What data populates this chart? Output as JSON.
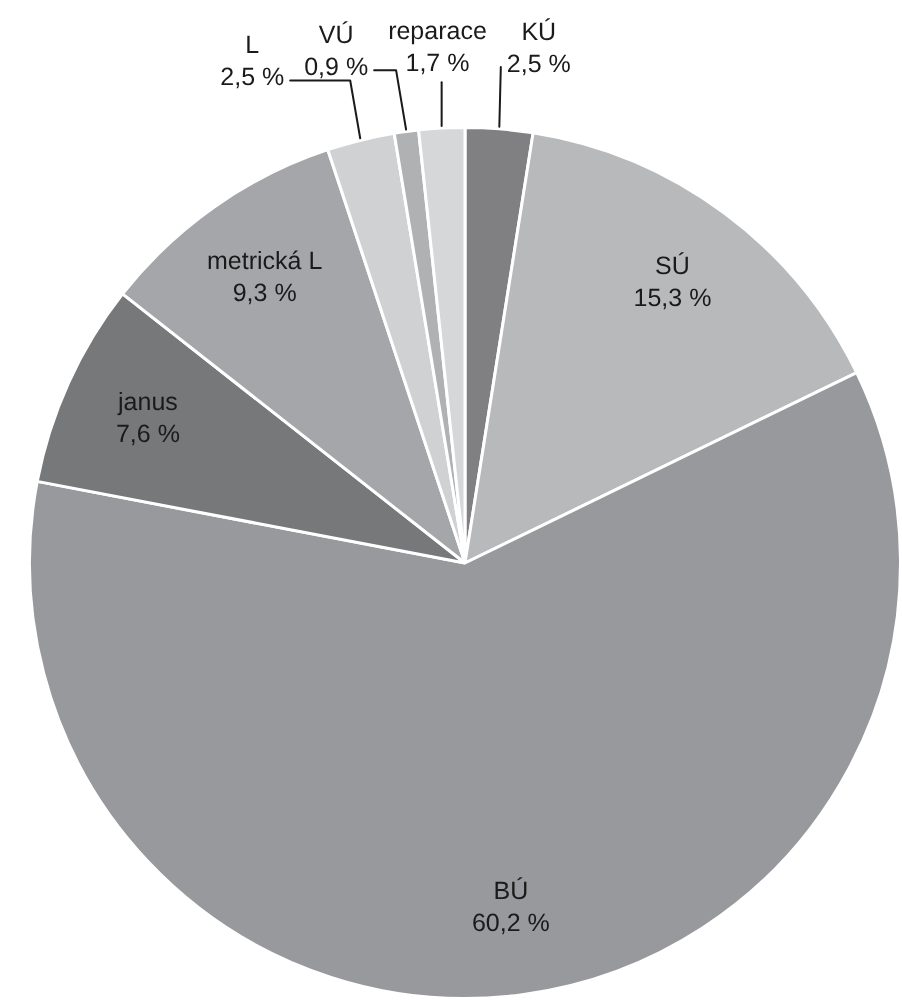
{
  "chart_data": {
    "type": "pie",
    "categories": [
      "KÚ",
      "SÚ",
      "BÚ",
      "janus",
      "metrická L",
      "L",
      "VÚ",
      "reparace"
    ],
    "values": [
      2.5,
      15.3,
      60.2,
      7.6,
      9.3,
      2.5,
      0.9,
      1.7
    ],
    "colors": [
      "#808083",
      "#b8b9bb",
      "#98999c",
      "#77787a",
      "#a5a6a9",
      "#d0d1d3",
      "#b0b1b3",
      "#d6d7d9"
    ],
    "value_labels": [
      "2,5 %",
      "15,3 %",
      "60,2 %",
      "7,6 %",
      "9,3 %",
      "2,5 %",
      "0,9 %",
      "1,7 %"
    ]
  }
}
